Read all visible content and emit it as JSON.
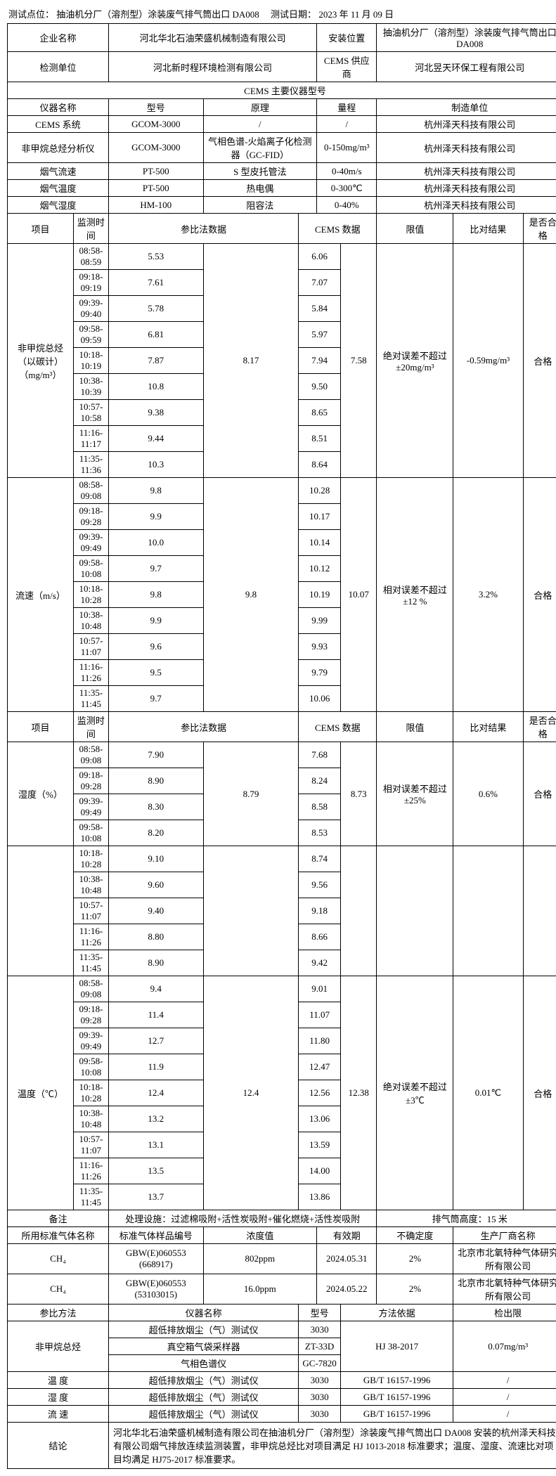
{
  "header": {
    "test_point_label": "测试点位：",
    "test_point": "抽油机分厂（溶剂型）涂装废气排气筒出口 DA008",
    "test_date_label": "测试日期：",
    "test_date": "2023 年 11 月 09 日"
  },
  "info": {
    "company_label": "企业名称",
    "company": "河北华北石油荣盛机械制造有限公司",
    "position_label": "安装位置",
    "position": "抽油机分厂（溶剂型）涂装废气排气筒出口 DA008",
    "detect_unit_label": "检测单位",
    "detect_unit": "河北新时程环境检测有限公司",
    "cems_supplier_label": "CEMS 供应商",
    "cems_supplier": "河北昱天环保工程有限公司"
  },
  "instruments": {
    "title": "CEMS 主要仪器型号",
    "headers": {
      "name": "仪器名称",
      "model": "型号",
      "principle": "原理",
      "range": "量程",
      "manufacturer": "制造单位"
    },
    "rows": [
      {
        "name": "CEMS 系统",
        "model": "GCOM-3000",
        "principle": "/",
        "range": "/",
        "manufacturer": "杭州泽天科技有限公司"
      },
      {
        "name": "非甲烷总烃分析仪",
        "model": "GCOM-3000",
        "principle": "气相色谱-火焰离子化检测器（GC-FID）",
        "range": "0-150mg/m³",
        "manufacturer": "杭州泽天科技有限公司"
      },
      {
        "name": "烟气流速",
        "model": "PT-500",
        "principle": "S 型皮托管法",
        "range": "0-40m/s",
        "manufacturer": "杭州泽天科技有限公司"
      },
      {
        "name": "烟气温度",
        "model": "PT-500",
        "principle": "热电偶",
        "range": "0-300℃",
        "manufacturer": "杭州泽天科技有限公司"
      },
      {
        "name": "烟气湿度",
        "model": "HM-100",
        "principle": "阻容法",
        "range": "0-40%",
        "manufacturer": "杭州泽天科技有限公司"
      }
    ]
  },
  "data_headers": {
    "item": "项目",
    "time": "监测时间",
    "ref": "参比法数据",
    "cems": "CEMS 数据",
    "limit": "限值",
    "result": "比对结果",
    "pass": "是否合格"
  },
  "nmhc": {
    "label": "非甲烷总烃（以碳计）（mg/m³）",
    "rows": [
      {
        "t": "08:58-08:59",
        "r": "5.53",
        "c": "6.06"
      },
      {
        "t": "09:18-09:19",
        "r": "7.61",
        "c": "7.07"
      },
      {
        "t": "09:39-09:40",
        "r": "5.78",
        "c": "5.84"
      },
      {
        "t": "09:58-09:59",
        "r": "6.81",
        "c": "5.97"
      },
      {
        "t": "10:18-10:19",
        "r": "7.87",
        "c": "7.94"
      },
      {
        "t": "10:38-10:39",
        "r": "10.8",
        "c": "9.50"
      },
      {
        "t": "10:57-10:58",
        "r": "9.38",
        "c": "8.65"
      },
      {
        "t": "11:16-11:17",
        "r": "9.44",
        "c": "8.51"
      },
      {
        "t": "11:35-11:36",
        "r": "10.3",
        "c": "8.64"
      }
    ],
    "ref_avg": "8.17",
    "cems_avg": "7.58",
    "limit": "绝对误差不超过±20mg/m³",
    "result": "-0.59mg/m³",
    "pass": "合格"
  },
  "velocity": {
    "label": "流速（m/s）",
    "rows": [
      {
        "t": "08:58-09:08",
        "r": "9.8",
        "c": "10.28"
      },
      {
        "t": "09:18-09:28",
        "r": "9.9",
        "c": "10.17"
      },
      {
        "t": "09:39-09:49",
        "r": "10.0",
        "c": "10.14"
      },
      {
        "t": "09:58-10:08",
        "r": "9.7",
        "c": "10.12"
      },
      {
        "t": "10:18-10:28",
        "r": "9.8",
        "c": "10.19"
      },
      {
        "t": "10:38-10:48",
        "r": "9.9",
        "c": "9.99"
      },
      {
        "t": "10:57-11:07",
        "r": "9.6",
        "c": "9.93"
      },
      {
        "t": "11:16-11:26",
        "r": "9.5",
        "c": "9.79"
      },
      {
        "t": "11:35-11:45",
        "r": "9.7",
        "c": "10.06"
      }
    ],
    "ref_avg": "9.8",
    "cems_avg": "10.07",
    "limit": "相对误差不超过±12 %",
    "result": "3.2%",
    "pass": "合格"
  },
  "humidity": {
    "label": "湿度（%）",
    "rows_a": [
      {
        "t": "08:58-09:08",
        "r": "7.90",
        "c": "7.68"
      },
      {
        "t": "09:18-09:28",
        "r": "8.90",
        "c": "8.24"
      },
      {
        "t": "09:39-09:49",
        "r": "8.30",
        "c": "8.58"
      },
      {
        "t": "09:58-10:08",
        "r": "8.20",
        "c": "8.53"
      }
    ],
    "rows_b": [
      {
        "t": "10:18-10:28",
        "r": "9.10",
        "c": "8.74"
      },
      {
        "t": "10:38-10:48",
        "r": "9.60",
        "c": "9.56"
      },
      {
        "t": "10:57-11:07",
        "r": "9.40",
        "c": "9.18"
      },
      {
        "t": "11:16-11:26",
        "r": "8.80",
        "c": "8.66"
      },
      {
        "t": "11:35-11:45",
        "r": "8.90",
        "c": "9.42"
      }
    ],
    "ref_avg": "8.79",
    "cems_avg": "8.73",
    "limit": "相对误差不超过±25%",
    "result": "0.6%",
    "pass": "合格"
  },
  "temperature": {
    "label": "温度（℃）",
    "rows": [
      {
        "t": "08:58-09:08",
        "r": "9.4",
        "c": "9.01"
      },
      {
        "t": "09:18-09:28",
        "r": "11.4",
        "c": "11.07"
      },
      {
        "t": "09:39-09:49",
        "r": "12.7",
        "c": "11.80"
      },
      {
        "t": "09:58-10:08",
        "r": "11.9",
        "c": "12.47"
      },
      {
        "t": "10:18-10:28",
        "r": "12.4",
        "c": "12.56"
      },
      {
        "t": "10:38-10:48",
        "r": "13.2",
        "c": "13.06"
      },
      {
        "t": "10:57-11:07",
        "r": "13.1",
        "c": "13.59"
      },
      {
        "t": "11:16-11:26",
        "r": "13.5",
        "c": "14.00"
      },
      {
        "t": "11:35-11:45",
        "r": "13.7",
        "c": "13.86"
      }
    ],
    "ref_avg": "12.4",
    "cems_avg": "12.38",
    "limit": "绝对误差不超过±3℃",
    "result": "0.01℃",
    "pass": "合格"
  },
  "remarks": {
    "label": "备注",
    "treatment": "处理设施：过滤棉吸附+活性炭吸附+催化燃烧+活性炭吸附",
    "height": "排气筒高度：15 米"
  },
  "gas": {
    "name_label": "所用标准气体名称",
    "code_label": "标准气体样品编号",
    "conc_label": "浓度值",
    "valid_label": "有效期",
    "uncertain_label": "不确定度",
    "maker_label": "生产厂商名称",
    "rows": [
      {
        "name": "CH₄",
        "code": "GBW(E)060553 (668917)",
        "conc": "802ppm",
        "valid": "2024.05.31",
        "uncertain": "2%",
        "maker": "北京市北氧特种气体研究所有限公司"
      },
      {
        "name": "CH₄",
        "code": "GBW(E)060553 (53103015)",
        "conc": "16.0ppm",
        "valid": "2024.05.22",
        "uncertain": "2%",
        "maker": "北京市北氧特种气体研究所有限公司"
      }
    ]
  },
  "refmethod": {
    "label": "参比方法",
    "inst_label": "仪器名称",
    "model_label": "型号",
    "basis_label": "方法依据",
    "detlim_label": "检出限",
    "nmhc_label": "非甲烷总烃",
    "nmhc_rows": [
      {
        "inst": "超低排放烟尘（气）测试仪",
        "model": "3030"
      },
      {
        "inst": "真空箱气袋采样器",
        "model": "ZT-33D"
      },
      {
        "inst": "气相色谱仪",
        "model": "GC-7820"
      }
    ],
    "nmhc_basis": "HJ 38-2017",
    "nmhc_detlim": "0.07mg/m³",
    "others": [
      {
        "name": "温 度",
        "inst": "超低排放烟尘（气）测试仪",
        "model": "3030",
        "basis": "GB/T 16157-1996",
        "detlim": "/"
      },
      {
        "name": "湿 度",
        "inst": "超低排放烟尘（气）测试仪",
        "model": "3030",
        "basis": "GB/T 16157-1996",
        "detlim": "/"
      },
      {
        "name": "流 速",
        "inst": "超低排放烟尘（气）测试仪",
        "model": "3030",
        "basis": "GB/T 16157-1996",
        "detlim": "/"
      }
    ]
  },
  "conclusion": {
    "label": "结论",
    "text": "河北华北石油荣盛机械制造有限公司在抽油机分厂（溶剂型）涂装废气排气筒出口 DA008 安装的杭州泽天科技有限公司烟气排放连续监测装置，非甲烷总烃比对项目满足 HJ 1013-2018 标准要求；温度、湿度、流速比对项目均满足 HJ75-2017 标准要求。"
  }
}
